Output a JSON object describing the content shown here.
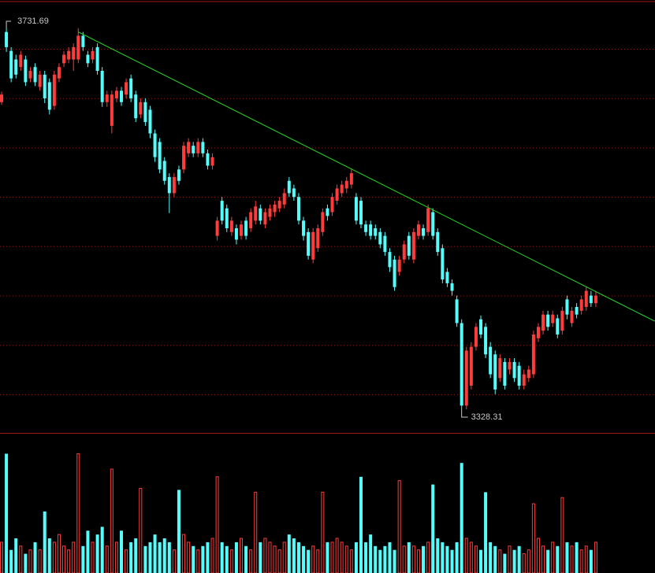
{
  "chart_data": [
    {
      "type": "candlestick",
      "up_color": "#ff3c3c",
      "down_color": "#54fcfc",
      "ylim": [
        3304.2,
        3760.7
      ],
      "ohlc": [
        [
          3653,
          3664,
          3650,
          3661
        ],
        [
          3727,
          3731.69,
          3706,
          3711
        ],
        [
          3707,
          3711,
          3674,
          3678
        ],
        [
          3698,
          3703,
          3678,
          3682
        ],
        [
          3690,
          3707,
          3686,
          3703
        ],
        [
          3698,
          3702,
          3670,
          3674
        ],
        [
          3678,
          3690,
          3674,
          3686
        ],
        [
          3690,
          3694,
          3670,
          3674
        ],
        [
          3669,
          3686,
          3665,
          3682
        ],
        [
          3682,
          3686,
          3652,
          3657
        ],
        [
          3674,
          3678,
          3640,
          3645
        ],
        [
          3649,
          3686,
          3645,
          3682
        ],
        [
          3678,
          3694,
          3674,
          3690
        ],
        [
          3694,
          3707,
          3690,
          3703
        ],
        [
          3698,
          3711,
          3694,
          3707
        ],
        [
          3698,
          3715,
          3686,
          3711
        ],
        [
          3698,
          3731,
          3694,
          3723
        ],
        [
          3723,
          3727,
          3707,
          3711
        ],
        [
          3703,
          3707,
          3690,
          3694
        ],
        [
          3698,
          3711,
          3694,
          3707
        ],
        [
          3711,
          3715,
          3682,
          3686
        ],
        [
          3686,
          3690,
          3648,
          3653
        ],
        [
          3653,
          3665,
          3648,
          3661
        ],
        [
          3628,
          3665,
          3620,
          3661
        ],
        [
          3657,
          3669,
          3653,
          3665
        ],
        [
          3665,
          3669,
          3649,
          3653
        ],
        [
          3661,
          3678,
          3657,
          3674
        ],
        [
          3678,
          3682,
          3653,
          3657
        ],
        [
          3661,
          3665,
          3632,
          3636
        ],
        [
          3640,
          3657,
          3636,
          3653
        ],
        [
          3653,
          3657,
          3628,
          3632
        ],
        [
          3645,
          3649,
          3615,
          3620
        ],
        [
          3620,
          3624,
          3590,
          3595
        ],
        [
          3611,
          3615,
          3578,
          3582
        ],
        [
          3591,
          3595,
          3566,
          3570
        ],
        [
          3574,
          3578,
          3536,
          3557
        ],
        [
          3557,
          3578,
          3553,
          3574
        ],
        [
          3582,
          3586,
          3566,
          3570
        ],
        [
          3582,
          3611,
          3578,
          3607
        ],
        [
          3599,
          3615,
          3595,
          3611
        ],
        [
          3607,
          3611,
          3595,
          3599
        ],
        [
          3599,
          3615,
          3595,
          3611
        ],
        [
          3611,
          3615,
          3595,
          3599
        ],
        [
          3599,
          3603,
          3582,
          3586
        ],
        [
          3586,
          3599,
          3582,
          3595
        ],
        [
          3512,
          3532,
          3507,
          3528
        ],
        [
          3549,
          3553,
          3524,
          3528
        ],
        [
          3541,
          3545,
          3516,
          3520
        ],
        [
          3516,
          3532,
          3512,
          3528
        ],
        [
          3520,
          3524,
          3503,
          3508
        ],
        [
          3512,
          3528,
          3508,
          3524
        ],
        [
          3528,
          3532,
          3508,
          3512
        ],
        [
          3520,
          3541,
          3516,
          3537
        ],
        [
          3528,
          3549,
          3524,
          3543
        ],
        [
          3541,
          3545,
          3524,
          3528
        ],
        [
          3524,
          3541,
          3520,
          3537
        ],
        [
          3532,
          3545,
          3528,
          3541
        ],
        [
          3537,
          3549,
          3532,
          3545
        ],
        [
          3541,
          3553,
          3537,
          3549
        ],
        [
          3545,
          3562,
          3541,
          3557
        ],
        [
          3570,
          3574,
          3553,
          3557
        ],
        [
          3562,
          3566,
          3549,
          3553
        ],
        [
          3553,
          3557,
          3524,
          3528
        ],
        [
          3528,
          3532,
          3507,
          3512
        ],
        [
          3516,
          3520,
          3487,
          3491
        ],
        [
          3487,
          3520,
          3483,
          3516
        ],
        [
          3499,
          3524,
          3495,
          3520
        ],
        [
          3516,
          3541,
          3512,
          3537
        ],
        [
          3541,
          3545,
          3528,
          3533
        ],
        [
          3537,
          3557,
          3533,
          3553
        ],
        [
          3549,
          3566,
          3545,
          3562
        ],
        [
          3557,
          3570,
          3553,
          3566
        ],
        [
          3562,
          3574,
          3557,
          3570
        ],
        [
          3566,
          3582,
          3562,
          3578
        ],
        [
          3553,
          3557,
          3524,
          3528
        ],
        [
          3549,
          3553,
          3520,
          3524
        ],
        [
          3524,
          3528,
          3512,
          3516
        ],
        [
          3524,
          3528,
          3508,
          3512
        ],
        [
          3520,
          3524,
          3508,
          3512
        ],
        [
          3516,
          3520,
          3499,
          3503
        ],
        [
          3512,
          3516,
          3491,
          3495
        ],
        [
          3495,
          3499,
          3474,
          3479
        ],
        [
          3487,
          3491,
          3454,
          3458
        ],
        [
          3474,
          3491,
          3470,
          3487
        ],
        [
          3487,
          3507,
          3483,
          3503
        ],
        [
          3512,
          3516,
          3487,
          3491
        ],
        [
          3487,
          3520,
          3483,
          3516
        ],
        [
          3512,
          3528,
          3508,
          3524
        ],
        [
          3520,
          3524,
          3508,
          3512
        ],
        [
          3516,
          3545,
          3512,
          3541
        ],
        [
          3537,
          3541,
          3508,
          3512
        ],
        [
          3516,
          3520,
          3491,
          3495
        ],
        [
          3499,
          3503,
          3462,
          3466
        ],
        [
          3474,
          3478,
          3458,
          3462
        ],
        [
          3462,
          3466,
          3449,
          3454
        ],
        [
          3445,
          3449,
          3416,
          3420
        ],
        [
          3420,
          3424,
          3328.31,
          3333
        ],
        [
          3333,
          3395,
          3329,
          3391
        ],
        [
          3354,
          3400,
          3350,
          3395
        ],
        [
          3395,
          3420,
          3391,
          3416
        ],
        [
          3424,
          3428,
          3404,
          3408
        ],
        [
          3416,
          3420,
          3383,
          3387
        ],
        [
          3395,
          3400,
          3362,
          3366
        ],
        [
          3387,
          3391,
          3345,
          3350
        ],
        [
          3362,
          3387,
          3358,
          3383
        ],
        [
          3379,
          3383,
          3350,
          3354
        ],
        [
          3371,
          3383,
          3366,
          3379
        ],
        [
          3379,
          3383,
          3358,
          3362
        ],
        [
          3375,
          3379,
          3350,
          3354
        ],
        [
          3354,
          3371,
          3350,
          3366
        ],
        [
          3362,
          3375,
          3358,
          3371
        ],
        [
          3366,
          3412,
          3362,
          3408
        ],
        [
          3404,
          3420,
          3400,
          3416
        ],
        [
          3412,
          3433,
          3408,
          3429
        ],
        [
          3429,
          3433,
          3412,
          3416
        ],
        [
          3420,
          3433,
          3416,
          3429
        ],
        [
          3425,
          3429,
          3404,
          3408
        ],
        [
          3412,
          3437,
          3408,
          3433
        ],
        [
          3445,
          3449,
          3424,
          3429
        ],
        [
          3420,
          3437,
          3416,
          3433
        ],
        [
          3437,
          3441,
          3425,
          3429
        ],
        [
          3433,
          3449,
          3429,
          3445
        ],
        [
          3437,
          3458,
          3433,
          3454
        ],
        [
          3449,
          3454,
          3437,
          3441
        ],
        [
          3441,
          3454,
          3437,
          3449
        ]
      ],
      "trend_line": {
        "color": "#22dd22",
        "x": [
          16,
          136.3
        ],
        "values": [
          3727,
          3422
        ]
      }
    },
    {
      "type": "bar",
      "ylim": [
        0,
        180
      ],
      "values": [
        40,
        155,
        30,
        45,
        35,
        25,
        30,
        40,
        30,
        80,
        45,
        40,
        50,
        35,
        30,
        40,
        155,
        35,
        55,
        40,
        50,
        60,
        35,
        135,
        40,
        55,
        30,
        40,
        45,
        110,
        35,
        40,
        50,
        40,
        45,
        40,
        30,
        108,
        50,
        40,
        35,
        30,
        35,
        40,
        45,
        125,
        40,
        35,
        30,
        40,
        45,
        35,
        30,
        105,
        40,
        45,
        40,
        35,
        30,
        40,
        50,
        45,
        40,
        35,
        30,
        35,
        30,
        105,
        40,
        40,
        45,
        40,
        35,
        30,
        40,
        125,
        40,
        50,
        35,
        30,
        35,
        40,
        30,
        120,
        35,
        40,
        35,
        30,
        35,
        40,
        115,
        45,
        40,
        35,
        30,
        40,
        143,
        45,
        40,
        35,
        30,
        105,
        40,
        35,
        30,
        25,
        35,
        30,
        35,
        25,
        30,
        90,
        45,
        35,
        30,
        40,
        35,
        98,
        40,
        35,
        40,
        30,
        35,
        30,
        40
      ]
    }
  ]
}
